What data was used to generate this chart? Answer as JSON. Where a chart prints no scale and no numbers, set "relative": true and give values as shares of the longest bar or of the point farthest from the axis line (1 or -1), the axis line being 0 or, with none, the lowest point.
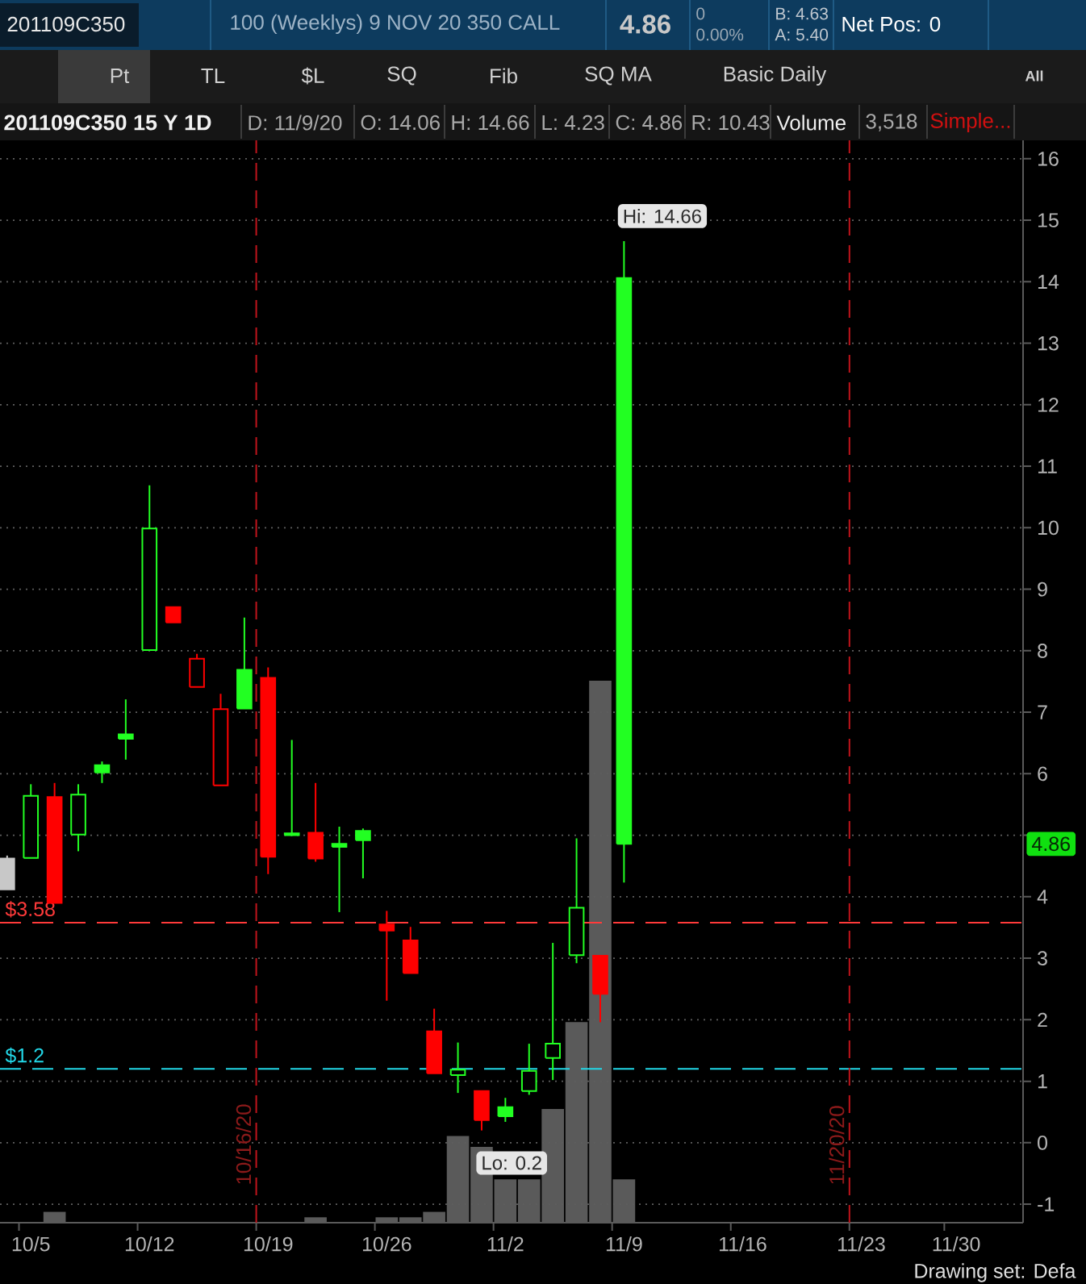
{
  "chart_data": [
    {
      "type": "candlestick",
      "title": "201109C350 15 Y 1D",
      "subtitle": "100 (Weeklys) 9 NOV 20 350 CALL",
      "tick_labels": "y",
      "categories": [
        null,
        "10/5",
        null,
        null,
        null,
        null,
        "10/12",
        null,
        null,
        null,
        null,
        "10/19",
        null,
        null,
        null,
        null,
        "10/26",
        null,
        null,
        null,
        null,
        "11/2",
        null,
        null,
        null,
        null,
        "11/9",
        null,
        null,
        null,
        null,
        "11/16",
        null,
        null,
        null,
        null,
        "11/23",
        null,
        null,
        null,
        "11/30",
        null,
        null
      ],
      "ohlc": [
        [
          4.62,
          4.67,
          4.12,
          4.12
        ],
        [
          4.63,
          5.83,
          4.63,
          5.64
        ],
        [
          5.62,
          5.85,
          3.9,
          3.9
        ],
        [
          5.01,
          5.83,
          4.74,
          5.66
        ],
        [
          6.14,
          6.2,
          5.85,
          6.02
        ],
        [
          6.64,
          7.21,
          6.23,
          6.57
        ],
        [
          8.01,
          10.69,
          8.01,
          9.99
        ],
        [
          8.71,
          8.71,
          8.46,
          8.46
        ],
        [
          7.41,
          7.95,
          7.41,
          7.87
        ],
        [
          5.81,
          7.3,
          5.81,
          7.05
        ],
        [
          7.69,
          8.54,
          7.06,
          7.06
        ],
        [
          7.56,
          7.73,
          4.37,
          4.65
        ],
        [
          5.03,
          6.55,
          4.99,
          5.0
        ],
        [
          5.04,
          5.85,
          4.57,
          4.62
        ],
        [
          4.86,
          5.14,
          3.75,
          4.81
        ],
        [
          5.07,
          5.11,
          4.3,
          4.92
        ],
        [
          3.55,
          3.77,
          2.31,
          3.45
        ],
        [
          3.29,
          3.51,
          2.76,
          2.76
        ],
        [
          1.81,
          2.18,
          1.13,
          1.13
        ],
        [
          1.1,
          1.63,
          0.81,
          1.19
        ],
        [
          0.84,
          0.84,
          0.2,
          0.37
        ],
        [
          0.58,
          0.73,
          0.34,
          0.43
        ],
        [
          0.84,
          1.61,
          0.78,
          1.17
        ],
        [
          1.38,
          3.25,
          1.02,
          1.61
        ],
        [
          3.05,
          4.95,
          2.92,
          3.82
        ],
        [
          3.04,
          3.04,
          1.96,
          2.42
        ],
        [
          14.06,
          14.66,
          4.23,
          4.86
        ],
        null,
        null,
        null,
        null,
        null,
        null,
        null,
        null,
        null,
        null,
        null,
        null,
        null,
        null,
        null,
        null
      ],
      "colors": [
        "#c8c8c8",
        "#22ff22",
        "#ff0000",
        "#22ff22",
        "#22ff22",
        "#22ff22",
        "#22ff22",
        "#ff0000",
        "#ff0000",
        "#ff0000",
        "#22ff22",
        "#ff0000",
        "#22ff22",
        "#ff0000",
        "#22ff22",
        "#22ff22",
        "#ff0000",
        "#ff0000",
        "#ff0000",
        "#22ff22",
        "#ff0000",
        "#22ff22",
        "#22ff22",
        "#22ff22",
        "#22ff22",
        "#ff0000",
        "#22ff22",
        null,
        null,
        null,
        null,
        null,
        null,
        null,
        null,
        null,
        null,
        null,
        null,
        null,
        null,
        null,
        null
      ],
      "ylim": [
        -1.3,
        16.3
      ],
      "yticks": [
        -1,
        0,
        1,
        2,
        3,
        4,
        {
          "value": 5,
          "label": null
        },
        6,
        7,
        8,
        9,
        10,
        11,
        12,
        13,
        14,
        15,
        16
      ],
      "grid": true,
      "ref_lines": [
        {
          "axis": "y",
          "value": 3.58,
          "label": "$3.58",
          "color": "#ff3a3a",
          "line_style": "dashed"
        },
        {
          "axis": "y",
          "value": 1.2,
          "label": "$1.2",
          "color": "#22d8e8",
          "line_style": "dashed"
        }
      ],
      "annotations": [
        "201109C350",
        "4.86",
        "0",
        "0.00%",
        "B: 4.63",
        "A: 5.40",
        "Net Pos: 0",
        "Pt",
        "TL",
        "$L",
        "SQ",
        "Fib",
        "SQ MA",
        "Basic Daily",
        "All",
        "D: 11/9/20",
        "O: 14.06",
        "H: 14.66",
        "L: 4.23",
        "C: 4.86",
        "R: 10.43",
        "Volume",
        "3,518",
        "Simple...",
        "Drawing set: Defa",
        "10/16/20",
        "11/20/20",
        "Lo: 0.2",
        {
          "text": "Hi: 14.66",
          "x": "11/9",
          "y": 14.66
        },
        {
          "text": "4.86",
          "y": 4.86
        }
      ]
    },
    {
      "type": "bar",
      "relative": true,
      "color": "#5a5a5a",
      "categories": [
        null,
        "10/5",
        null,
        null,
        null,
        null,
        "10/12",
        null,
        null,
        null,
        null,
        "10/19",
        null,
        null,
        null,
        null,
        "10/26",
        null,
        null,
        null,
        null,
        "11/2",
        null,
        null,
        null,
        null,
        "11/9",
        null,
        null,
        null,
        null,
        "11/16",
        null,
        null,
        null,
        null,
        "11/23",
        null,
        null,
        null,
        "11/30",
        null,
        null
      ],
      "values": [
        null,
        null,
        0.02,
        null,
        null,
        null,
        null,
        null,
        null,
        null,
        null,
        null,
        null,
        0.01,
        null,
        null,
        0.01,
        0.01,
        0.02,
        0.16,
        0.14,
        0.08,
        0.08,
        0.21,
        0.37,
        1,
        0.08,
        null,
        null,
        null,
        null,
        null,
        null,
        null,
        null,
        null,
        null,
        null,
        null,
        null,
        null,
        null,
        null
      ]
    }
  ]
}
